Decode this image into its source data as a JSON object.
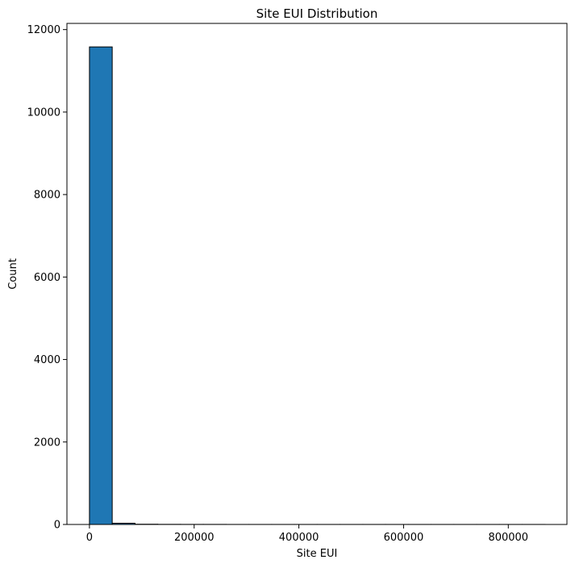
{
  "chart_data": {
    "type": "bar",
    "title": "Site EUI Distribution",
    "xlabel": "Site EUI",
    "ylabel": "Count",
    "xlim": [
      -43000,
      912000
    ],
    "ylim": [
      0,
      12150
    ],
    "xticks": [
      0,
      200000,
      400000,
      600000,
      800000
    ],
    "xtick_labels": [
      "0",
      "200000",
      "400000",
      "600000",
      "800000"
    ],
    "yticks": [
      0,
      2000,
      4000,
      6000,
      8000,
      10000,
      12000
    ],
    "ytick_labels": [
      "0",
      "2000",
      "4000",
      "6000",
      "8000",
      "10000",
      "12000"
    ],
    "bin_edges": [
      0,
      43500,
      87000,
      130500,
      174000,
      217500,
      261000,
      304500,
      348000,
      391500,
      435000,
      478500,
      522000,
      565500,
      609000,
      652500,
      696000,
      739500,
      783000,
      826500,
      870000
    ],
    "counts": [
      11580,
      30,
      6,
      3,
      2,
      2,
      1,
      1,
      1,
      1,
      1,
      1,
      1,
      1,
      1,
      1,
      1,
      1,
      1,
      1
    ],
    "grid": false,
    "bar_color": "#1f77b4",
    "edge_color": "#000000"
  }
}
